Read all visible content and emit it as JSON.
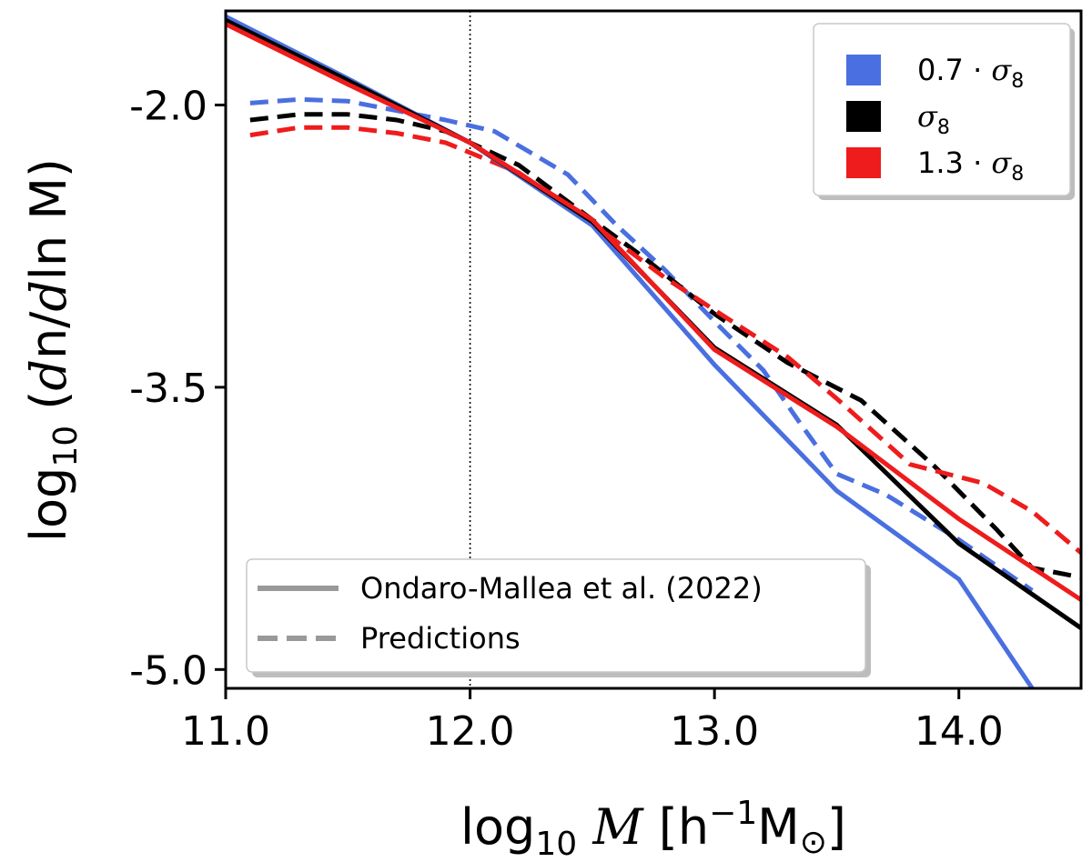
{
  "chart_data": {
    "type": "line",
    "xlabel": "log10 M [h^-1 M_sun]",
    "ylabel": "log10 (dn/dln M)",
    "xlim": [
      11.0,
      14.5
    ],
    "ylim": [
      -5.1,
      -1.5
    ],
    "x_ticks": [
      {
        "value": 11.0,
        "label": "11.0"
      },
      {
        "value": 12.0,
        "label": "12.0"
      },
      {
        "value": 13.0,
        "label": "13.0"
      },
      {
        "value": 14.0,
        "label": "14.0"
      }
    ],
    "y_ticks": [
      {
        "value": -2.0,
        "label": "-2.0"
      },
      {
        "value": -3.5,
        "label": "-3.5"
      },
      {
        "value": -5.0,
        "label": "-5.0"
      }
    ],
    "vline": 12.0,
    "color_legend": {
      "position": "top-right",
      "entries": [
        {
          "prefix": "0.7 · ",
          "symbol": "σ",
          "sub": "8",
          "color": "#4a6fe0"
        },
        {
          "prefix": "",
          "symbol": "σ",
          "sub": "8",
          "color": "#000000"
        },
        {
          "prefix": "1.3 · ",
          "symbol": "σ",
          "sub": "8",
          "color": "#ee1c1c"
        }
      ]
    },
    "style_legend": {
      "position": "bottom-left",
      "entries": [
        {
          "label": "Ondaro-Mallea et al. (2022)",
          "style": "solid"
        },
        {
          "label": "Predictions",
          "style": "dashed"
        }
      ]
    },
    "series": [
      {
        "color": "#4a6fe0",
        "style": "solid",
        "points": [
          [
            11.0,
            -1.53
          ],
          [
            11.5,
            -1.86
          ],
          [
            12.0,
            -2.2
          ],
          [
            12.5,
            -2.64
          ],
          [
            13.0,
            -3.38
          ],
          [
            13.5,
            -4.05
          ],
          [
            14.0,
            -4.52
          ],
          [
            14.3,
            -5.1
          ]
        ]
      },
      {
        "color": "#000000",
        "style": "solid",
        "points": [
          [
            11.0,
            -1.55
          ],
          [
            11.5,
            -1.87
          ],
          [
            12.0,
            -2.2
          ],
          [
            12.5,
            -2.62
          ],
          [
            13.0,
            -3.29
          ],
          [
            13.5,
            -3.7
          ],
          [
            14.0,
            -4.33
          ],
          [
            14.5,
            -4.78
          ]
        ]
      },
      {
        "color": "#ee1c1c",
        "style": "solid",
        "points": [
          [
            11.0,
            -1.57
          ],
          [
            11.5,
            -1.89
          ],
          [
            12.0,
            -2.2
          ],
          [
            12.5,
            -2.61
          ],
          [
            13.0,
            -3.3
          ],
          [
            13.5,
            -3.71
          ],
          [
            14.0,
            -4.2
          ],
          [
            14.5,
            -4.63
          ]
        ]
      },
      {
        "color": "#4a6fe0",
        "style": "dashed",
        "points": [
          [
            11.1,
            -1.99
          ],
          [
            11.3,
            -1.97
          ],
          [
            11.5,
            -1.98
          ],
          [
            11.7,
            -2.03
          ],
          [
            11.9,
            -2.08
          ],
          [
            12.1,
            -2.14
          ],
          [
            12.4,
            -2.37
          ],
          [
            12.6,
            -2.64
          ],
          [
            12.8,
            -2.88
          ],
          [
            13.0,
            -3.15
          ],
          [
            13.2,
            -3.41
          ],
          [
            13.35,
            -3.69
          ],
          [
            13.5,
            -3.96
          ],
          [
            13.7,
            -4.07
          ],
          [
            14.0,
            -4.31
          ],
          [
            14.3,
            -4.58
          ]
        ]
      },
      {
        "color": "#000000",
        "style": "dashed",
        "points": [
          [
            11.1,
            -2.08
          ],
          [
            11.3,
            -2.05
          ],
          [
            11.5,
            -2.05
          ],
          [
            11.7,
            -2.08
          ],
          [
            11.9,
            -2.14
          ],
          [
            12.2,
            -2.32
          ],
          [
            12.5,
            -2.61
          ],
          [
            12.7,
            -2.8
          ],
          [
            13.0,
            -3.11
          ],
          [
            13.3,
            -3.37
          ],
          [
            13.6,
            -3.57
          ],
          [
            13.9,
            -3.92
          ],
          [
            14.15,
            -4.25
          ],
          [
            14.3,
            -4.46
          ],
          [
            14.5,
            -4.51
          ]
        ]
      },
      {
        "color": "#ee1c1c",
        "style": "dashed",
        "points": [
          [
            11.1,
            -2.16
          ],
          [
            11.3,
            -2.12
          ],
          [
            11.5,
            -2.12
          ],
          [
            11.7,
            -2.15
          ],
          [
            11.9,
            -2.2
          ],
          [
            12.2,
            -2.36
          ],
          [
            12.5,
            -2.63
          ],
          [
            12.8,
            -2.92
          ],
          [
            13.0,
            -3.09
          ],
          [
            13.3,
            -3.34
          ],
          [
            13.5,
            -3.56
          ],
          [
            13.8,
            -3.91
          ],
          [
            14.1,
            -4.01
          ],
          [
            14.3,
            -4.16
          ],
          [
            14.5,
            -4.38
          ]
        ]
      }
    ]
  }
}
